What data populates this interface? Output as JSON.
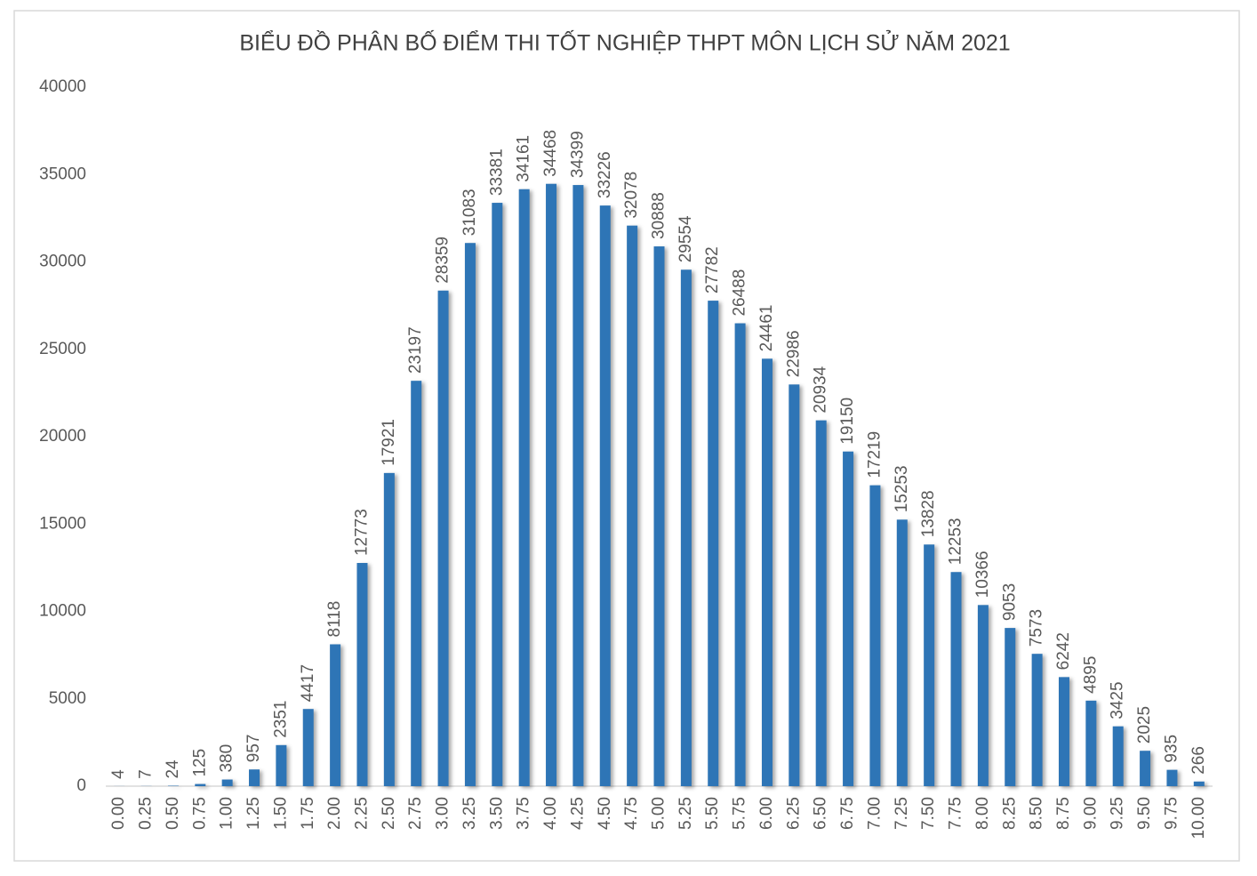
{
  "chart_data": {
    "type": "bar",
    "title": "BIỂU ĐỒ PHÂN BỐ ĐIỂM THI TỐT NGHIỆP THPT MÔN LỊCH SỬ NĂM 2021",
    "categories": [
      "0.00",
      "0.25",
      "0.50",
      "0.75",
      "1.00",
      "1.25",
      "1.50",
      "1.75",
      "2.00",
      "2.25",
      "2.50",
      "2.75",
      "3.00",
      "3.25",
      "3.50",
      "3.75",
      "4.00",
      "4.25",
      "4.50",
      "4.75",
      "5.00",
      "5.25",
      "5.50",
      "5.75",
      "6.00",
      "6.25",
      "6.50",
      "6.75",
      "7.00",
      "7.25",
      "7.50",
      "7.75",
      "8.00",
      "8.25",
      "8.50",
      "8.75",
      "9.00",
      "9.25",
      "9.50",
      "9.75",
      "10.00"
    ],
    "values": [
      4,
      7,
      24,
      125,
      380,
      957,
      2351,
      4417,
      8118,
      12773,
      17921,
      23197,
      28359,
      31083,
      33381,
      34161,
      34468,
      34399,
      33226,
      32078,
      30888,
      29554,
      27782,
      26488,
      24461,
      22986,
      20934,
      19150,
      17219,
      15253,
      13828,
      12253,
      10366,
      9053,
      7573,
      6242,
      4895,
      3425,
      2025,
      935,
      266
    ],
    "color": "#2e75b6",
    "ylim": [
      0,
      40000
    ],
    "yticks": [
      0,
      5000,
      10000,
      15000,
      20000,
      25000,
      30000,
      35000,
      40000
    ],
    "grid": false
  }
}
